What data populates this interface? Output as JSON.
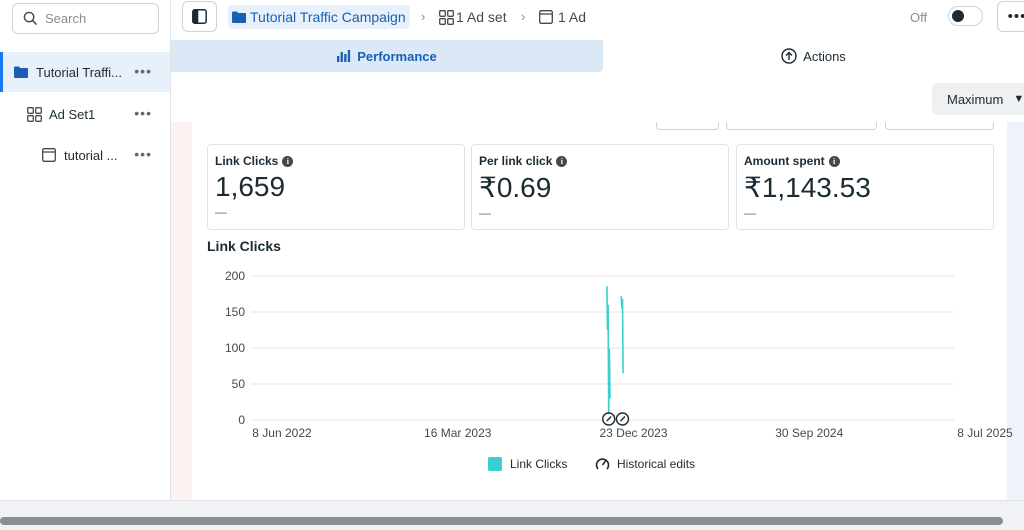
{
  "search": {
    "placeholder": "Search"
  },
  "sidebar": {
    "items": [
      {
        "label": "Tutorial Traffi...",
        "icon": "folder-icon"
      },
      {
        "label": "Ad Set1",
        "icon": "grid-icon"
      },
      {
        "label": "tutorial ...",
        "icon": "ad-icon"
      }
    ]
  },
  "breadcrumb": {
    "campaign": "Tutorial Traffic Campaign",
    "adset": "1 Ad set",
    "ad": "1 Ad"
  },
  "toggle": {
    "label": "Off"
  },
  "tabs": {
    "performance": "Performance",
    "actions": "Actions"
  },
  "dropdown": {
    "value": "Maximum"
  },
  "metrics": [
    {
      "title": "Link Clicks",
      "value": "1,659",
      "sub": "—"
    },
    {
      "title": "Per link click",
      "value": "₹0.69",
      "sub": "—"
    },
    {
      "title": "Amount spent",
      "value": "₹1,143.53",
      "sub": "—"
    }
  ],
  "chart_data": {
    "type": "line",
    "title": "Link Clicks",
    "xlabel": "",
    "ylabel": "",
    "x_tick_labels": [
      "8 Jun 2022",
      "16 Mar 2023",
      "23 Dec 2023",
      "30 Sep 2024",
      "8 Jul 2025"
    ],
    "y_tick_labels": [
      "0",
      "50",
      "100",
      "150",
      "200"
    ],
    "ylim": [
      0,
      200
    ],
    "xlim": [
      "2022-06-08",
      "2025-07-08"
    ],
    "grid": true,
    "legend_position": "bottom",
    "series": [
      {
        "name": "Link Clicks",
        "color": "#3ccfcf",
        "points": [
          {
            "x": "2023-12-30",
            "y": 186
          },
          {
            "x": "2023-12-31",
            "y": 125
          },
          {
            "x": "2024-01-01",
            "y": 160
          },
          {
            "x": "2024-01-02",
            "y": 10
          },
          {
            "x": "2024-01-03",
            "y": 99
          },
          {
            "x": "2024-01-04",
            "y": 30
          },
          {
            "x": "2024-01-22",
            "y": 172
          },
          {
            "x": "2024-01-23",
            "y": 155
          },
          {
            "x": "2024-01-24",
            "y": 168
          },
          {
            "x": "2024-01-25",
            "y": 65
          }
        ]
      },
      {
        "name": "Historical edits",
        "markers": [
          {
            "x": "2024-01-02"
          },
          {
            "x": "2024-01-24"
          }
        ]
      }
    ]
  },
  "legend": {
    "series1": "Link Clicks",
    "series2": "Historical edits"
  }
}
